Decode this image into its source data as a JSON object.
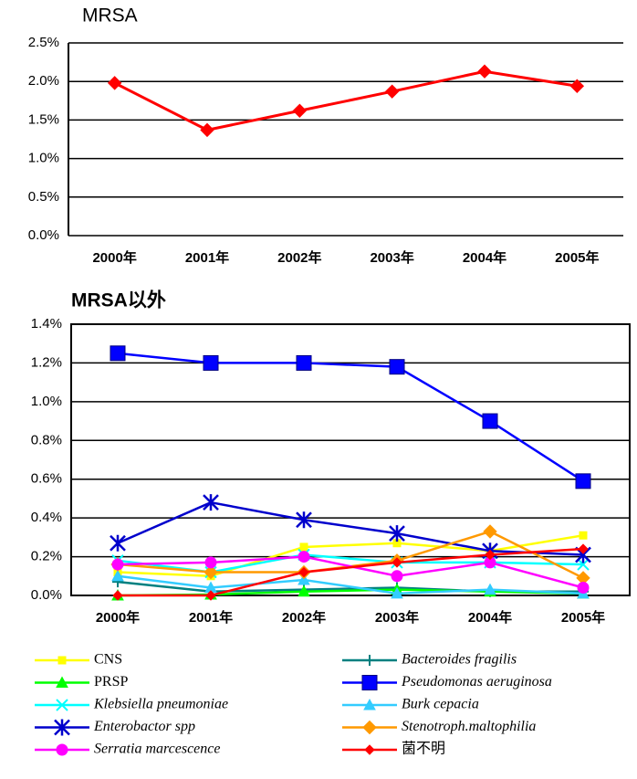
{
  "chart_data": [
    {
      "type": "line",
      "title": "MRSA",
      "categories": [
        "2000年",
        "2001年",
        "2002年",
        "2003年",
        "2004年",
        "2005年"
      ],
      "series": [
        {
          "name": "MRSA",
          "color": "#ff0000",
          "marker": "diamond",
          "values": [
            1.98,
            1.37,
            1.62,
            1.87,
            2.13,
            1.94
          ]
        }
      ],
      "ylim": [
        0,
        2.5
      ],
      "yticks": [
        {
          "value": 0,
          "label": "0.0%"
        },
        {
          "value": 0.5,
          "label": "0.5%"
        },
        {
          "value": 1,
          "label": "1.0%"
        },
        {
          "value": 1.5,
          "label": "1.5%"
        },
        {
          "value": 2,
          "label": "2.0%"
        },
        {
          "value": 2.5,
          "label": "2.5%"
        }
      ],
      "grid": true,
      "legend": false
    },
    {
      "type": "line",
      "title": "MRSA以外",
      "categories": [
        "2000年",
        "2001年",
        "2002年",
        "2003年",
        "2004年",
        "2005年"
      ],
      "series": [
        {
          "name": "CNS",
          "color": "#ffff00",
          "marker": "square",
          "italic": false,
          "values": [
            0.12,
            0.1,
            0.25,
            0.27,
            0.23,
            0.31
          ]
        },
        {
          "name": "Bacteroides fragilis",
          "color": "#008080",
          "marker": "plus",
          "italic": true,
          "values": [
            0.07,
            0.02,
            0.03,
            0.04,
            0.02,
            0.02
          ]
        },
        {
          "name": "PRSP",
          "color": "#00ff00",
          "marker": "triangle",
          "italic": false,
          "values": [
            0,
            0.005,
            0.02,
            0.03,
            0.02,
            0.01
          ]
        },
        {
          "name": "Pseudomonas aeruginosa",
          "color": "#0000ff",
          "marker": "bigsquare",
          "italic": true,
          "values": [
            1.25,
            1.2,
            1.2,
            1.18,
            0.9,
            0.59
          ]
        },
        {
          "name": "Klebsiella pneumoniae",
          "color": "#00ffff",
          "marker": "x",
          "italic": true,
          "values": [
            0.18,
            0.12,
            0.21,
            0.17,
            0.17,
            0.16
          ]
        },
        {
          "name": "Burk cepacia",
          "color": "#33ccff",
          "marker": "triangle",
          "italic": true,
          "values": [
            0.1,
            0.04,
            0.08,
            0.01,
            0.03,
            0.01
          ]
        },
        {
          "name": "Enterobactor spp",
          "color": "#0000cc",
          "marker": "star",
          "italic": true,
          "values": [
            0.27,
            0.48,
            0.39,
            0.32,
            0.23,
            0.21
          ]
        },
        {
          "name": "Stenotroph.maltophilia",
          "color": "#ff9900",
          "marker": "diamond",
          "italic": true,
          "values": [
            0.16,
            0.12,
            0.12,
            0.18,
            0.33,
            0.09
          ]
        },
        {
          "name": "Serratia marcescence",
          "color": "#ff00ff",
          "marker": "circle",
          "italic": true,
          "values": [
            0.16,
            0.17,
            0.2,
            0.1,
            0.17,
            0.04
          ]
        },
        {
          "name": "菌不明",
          "color": "#ff0000",
          "marker": "smalldiamond",
          "italic": false,
          "values": [
            0,
            0,
            0.12,
            0.17,
            0.21,
            0.24
          ]
        }
      ],
      "ylim": [
        0,
        1.4
      ],
      "yticks": [
        {
          "value": 0,
          "label": "0.0%"
        },
        {
          "value": 0.2,
          "label": "0.2%"
        },
        {
          "value": 0.4,
          "label": "0.4%"
        },
        {
          "value": 0.6,
          "label": "0.6%"
        },
        {
          "value": 0.8,
          "label": "0.8%"
        },
        {
          "value": 1,
          "label": "1.0%"
        },
        {
          "value": 1.2,
          "label": "1.2%"
        },
        {
          "value": 1.4,
          "label": "1.4%"
        }
      ],
      "grid": true,
      "legend": true
    }
  ]
}
